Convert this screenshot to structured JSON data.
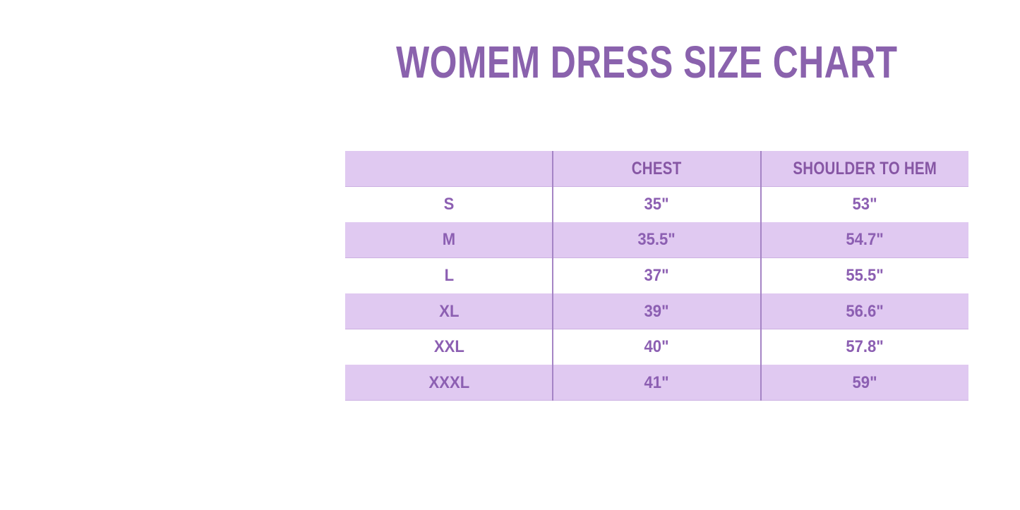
{
  "chart_data": {
    "type": "table",
    "title": "WOMEM DRESS SIZE CHART",
    "columns": [
      "",
      "CHEST",
      "SHOULDER TO HEM"
    ],
    "rows": [
      [
        "S",
        "35\"",
        "53\""
      ],
      [
        "M",
        "35.5\"",
        "54.7\""
      ],
      [
        "L",
        "37\"",
        "55.5\""
      ],
      [
        "XL",
        "39\"",
        "56.6\""
      ],
      [
        "XXL",
        "40\"",
        "57.8\""
      ],
      [
        "XXXL",
        "41\"",
        "59\""
      ]
    ]
  },
  "colors": {
    "background": "#ffffff",
    "title_text": "#8a62ad",
    "header_text": "#8656a4",
    "body_text": "#8c5fb2",
    "row_lavender": "#e0c9f1",
    "row_white": "#ffffff",
    "divider": "#a584c5"
  }
}
